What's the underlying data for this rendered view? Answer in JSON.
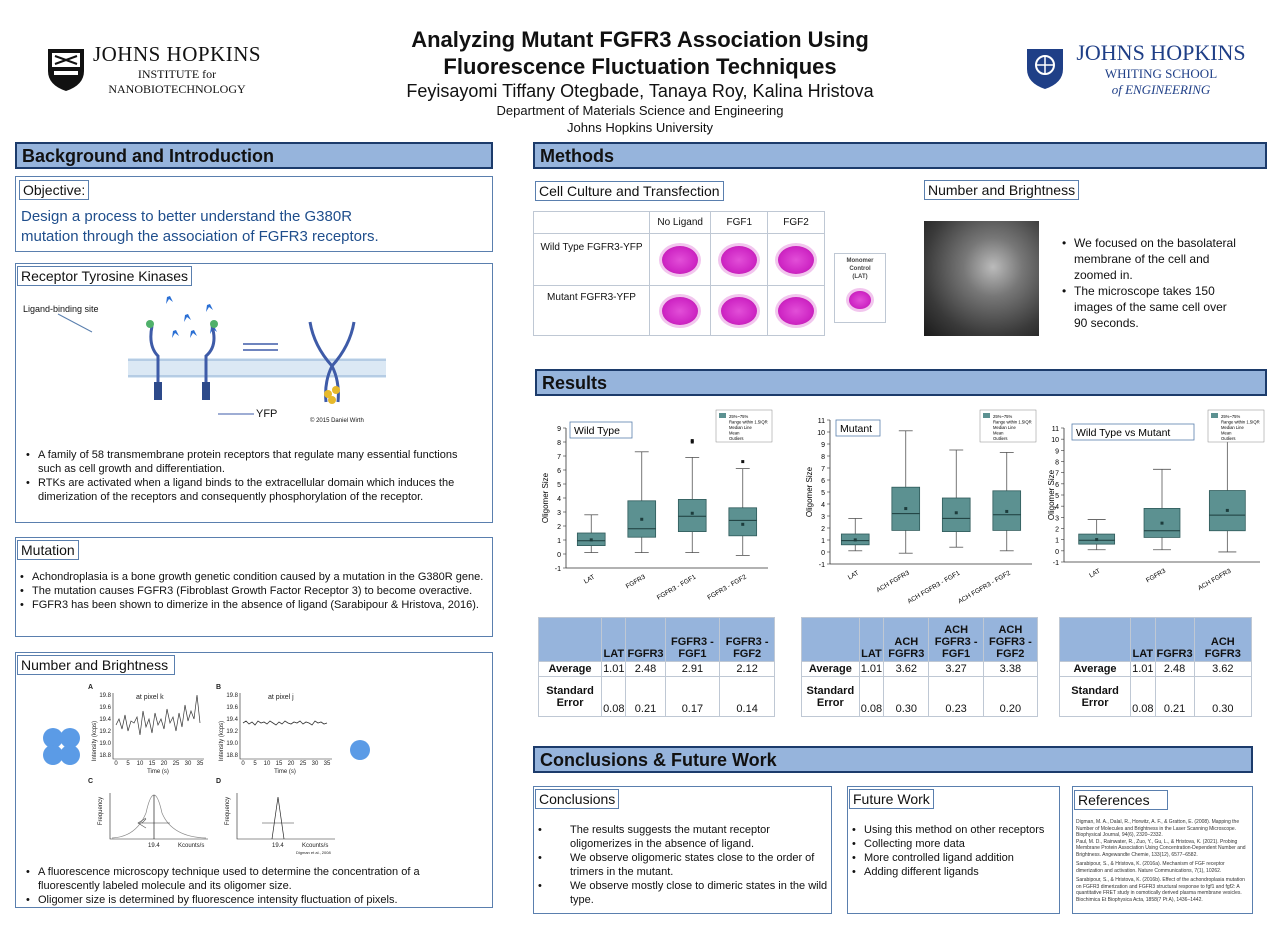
{
  "header": {
    "title_line1": "Analyzing Mutant FGFR3 Association Using",
    "title_line2": "Fluorescence Fluctuation Techniques",
    "authors": "Feyisayomi Tiffany Otegbade, Tanaya Roy, Kalina Hristova",
    "department": "Department of Materials Science and Engineering",
    "university": "Johns Hopkins University"
  },
  "logo_left": {
    "name": "JOHNS HOPKINS",
    "line2": "INSTITUTE for",
    "line3": "NANOBIOTECHNOLOGY",
    "icon": "shield-icon"
  },
  "logo_right": {
    "name": "JOHNS HOPKINS",
    "line2": "WHITING SCHOOL",
    "line3": "of ENGINEERING",
    "icon": "shield-icon"
  },
  "background": {
    "heading": "Background and Introduction",
    "objective_label": "Objective:",
    "objective_text": "Design a process to better understand the G380R mutation through the association of FGFR3 receptors.",
    "rtk_label": "Receptor Tyrosine Kinases",
    "fig_ligand": "Ligand-binding site",
    "fig_yfp": "YFP",
    "fig_credit": "© 2015 Daniel Wirth",
    "rtk_bullets": [
      "A family of 58 transmembrane protein receptors that regulate many essential functions such as cell growth and differentiation.",
      "RTKs are activated when a ligand binds to the extracellular domain which induces the dimerization of the receptors and consequently phosphorylation of the receptor."
    ]
  },
  "mutation": {
    "label": "Mutation",
    "bullets": [
      "Achondroplasia is a bone growth genetic condition caused by a mutation in the G380R gene.",
      "The mutation causes FGFR3 (Fibroblast Growth Factor Receptor 3) to become overactive.",
      "FGFR3 has been shown to dimerize in the absence of ligand (Sarabipour & Hristova, 2016)."
    ]
  },
  "nb_left": {
    "label": "Number and Brightness",
    "panel_a": "A",
    "panel_b": "B",
    "panel_c": "C",
    "panel_d": "D",
    "a_title": "at pixel k",
    "b_title": "at pixel j",
    "ylab": "Intensity (kcps)",
    "xlab": "Time (s)",
    "freq": "Frequency",
    "kc": "Kcounts/s",
    "val": "19.4",
    "cite": "Digman et al., 2008",
    "y_ticks": [
      "19.8",
      "19.6",
      "19.4",
      "19.2",
      "19.0",
      "18.8"
    ],
    "x_ticks": [
      "0",
      "5",
      "10",
      "15",
      "20",
      "25",
      "30",
      "35"
    ],
    "bullets": [
      "A fluorescence microscopy technique used to determine the concentration of a fluorescently labeled molecule and its oligomer size.",
      "Oligomer size is determined by fluorescence intensity fluctuation of pixels."
    ]
  },
  "methods": {
    "heading": "Methods",
    "cell_label": "Cell Culture and Transfection",
    "cols": [
      "No Ligand",
      "FGF1",
      "FGF2"
    ],
    "rows": [
      "Wild Type FGFR3-YFP",
      "Mutant FGFR3-YFP"
    ],
    "monomer": "Monomer Control (LAT)",
    "nb_label": "Number and Brightness",
    "nb_bullets": [
      "We focused on the basolateral membrane of the cell and zoomed in.",
      "The microscope takes 150 images of the same cell over 90 seconds."
    ]
  },
  "results": {
    "heading": "Results",
    "legend": [
      "25%~75%",
      "Range within 1.5IQR",
      "Median Line",
      "Mean",
      "Outliers"
    ]
  },
  "chart_data": [
    {
      "type": "box",
      "title": "Wild Type",
      "ylabel": "Oligomer Size",
      "ylim": [
        -1,
        9
      ],
      "y_ticks": [
        "-1",
        "0",
        "1",
        "2",
        "3",
        "4",
        "5",
        "6",
        "7",
        "8",
        "9"
      ],
      "categories": [
        "LAT",
        "FGFR3",
        "FGFR3 - FGF1",
        "FGFR3 - FGF2"
      ],
      "boxes": [
        {
          "min": 0.1,
          "q1": 0.6,
          "median": 0.95,
          "q3": 1.5,
          "max": 2.8,
          "mean": 1.01
        },
        {
          "min": 0.1,
          "q1": 1.2,
          "median": 1.8,
          "q3": 3.8,
          "max": 7.3,
          "mean": 2.48
        },
        {
          "min": 0.1,
          "q1": 1.6,
          "median": 2.7,
          "q3": 3.9,
          "max": 6.9,
          "mean": 2.91,
          "outliers": [
            8.0,
            8.1
          ]
        },
        {
          "min": -0.1,
          "q1": 1.3,
          "median": 2.4,
          "q3": 3.3,
          "max": 6.1,
          "mean": 2.12,
          "outliers": [
            6.6
          ]
        }
      ]
    },
    {
      "type": "box",
      "title": "Mutant",
      "ylabel": "Oligomer Size",
      "ylim": [
        -1,
        11
      ],
      "y_ticks": [
        "-1",
        "0",
        "1",
        "2",
        "3",
        "4",
        "5",
        "6",
        "7",
        "8",
        "9",
        "10",
        "11"
      ],
      "categories": [
        "LAT",
        "ACH FGFR3",
        "ACH FGFR3 - FGF1",
        "ACH FGFR3 - FGF2"
      ],
      "boxes": [
        {
          "min": 0.1,
          "q1": 0.6,
          "median": 0.95,
          "q3": 1.5,
          "max": 2.8,
          "mean": 1.01
        },
        {
          "min": -0.1,
          "q1": 1.8,
          "median": 3.2,
          "q3": 5.4,
          "max": 10.1,
          "mean": 3.62
        },
        {
          "min": 0.4,
          "q1": 1.7,
          "median": 2.8,
          "q3": 4.5,
          "max": 8.5,
          "mean": 3.27
        },
        {
          "min": 0.1,
          "q1": 1.8,
          "median": 3.1,
          "q3": 5.1,
          "max": 8.3,
          "mean": 3.38
        }
      ]
    },
    {
      "type": "box",
      "title": "Wild Type vs Mutant",
      "ylabel": "Oligomer Size",
      "ylim": [
        -1,
        11
      ],
      "y_ticks": [
        "-1",
        "0",
        "1",
        "2",
        "3",
        "4",
        "5",
        "6",
        "7",
        "8",
        "9",
        "10",
        "11"
      ],
      "categories": [
        "LAT",
        "FGFR3",
        "ACH FGFR3"
      ],
      "boxes": [
        {
          "min": 0.1,
          "q1": 0.6,
          "median": 0.95,
          "q3": 1.5,
          "max": 2.8,
          "mean": 1.01
        },
        {
          "min": 0.1,
          "q1": 1.2,
          "median": 1.8,
          "q3": 3.8,
          "max": 7.3,
          "mean": 2.48
        },
        {
          "min": -0.1,
          "q1": 1.8,
          "median": 3.2,
          "q3": 5.4,
          "max": 10.1,
          "mean": 3.62
        }
      ]
    }
  ],
  "tables": [
    {
      "cols": [
        "LAT",
        "FGFR3",
        "FGFR3 - FGF1",
        "FGFR3 - FGF2"
      ],
      "avg": [
        "1.01",
        "2.48",
        "2.91",
        "2.12"
      ],
      "err": [
        "0.08",
        "0.21",
        "0.17",
        "0.14"
      ]
    },
    {
      "cols": [
        "LAT",
        "ACH FGFR3",
        "ACH FGFR3 - FGF1",
        "ACH FGFR3 - FGF2"
      ],
      "avg": [
        "1.01",
        "3.62",
        "3.27",
        "3.38"
      ],
      "err": [
        "0.08",
        "0.30",
        "0.23",
        "0.20"
      ]
    },
    {
      "cols": [
        "LAT",
        "FGFR3",
        "ACH FGFR3"
      ],
      "avg": [
        "1.01",
        "2.48",
        "3.62"
      ],
      "err": [
        "0.08",
        "0.21",
        "0.30"
      ]
    }
  ],
  "table_labels": {
    "average": "Average",
    "error": "Standard Error"
  },
  "conclusions": {
    "heading": "Conclusions & Future Work",
    "c_label": "Conclusions",
    "c_bullets": [
      "The results suggests the mutant receptor oligomerizes in the absence of ligand.",
      "We observe oligomeric states close to the order of trimers in the mutant.",
      "We observe mostly close to dimeric states in the wild type."
    ],
    "f_label": "Future Work",
    "f_bullets": [
      "Using this method on other receptors",
      "Collecting more data",
      "More controlled ligand addition",
      "Adding different ligands"
    ],
    "r_label": "References",
    "refs": [
      "Digman, M. A., Dalal, R., Horwitz, A. F., & Gratton, E. (2008). Mapping the Number of Molecules and Brightness in the Laser Scanning Microscope. Biophysical Journal, 94(6), 2320–2332.",
      "Paul, M. D., Rainwater, R., Zuo, Y., Gu, L., & Hristova, K. (2021). Probing Membrane Protein Association Using Concentration-Dependent Number and Brightness. Angewandte Chemie, 133(12), 6577–6582.",
      "Sarabipour, S., & Hristova, K. (2016a). Mechanism of FGF receptor dimerization and activation. Nature Communications, 7(1), 10262.",
      "Sarabipour, S., & Hristova, K. (2016b). Effect of the achondroplasia mutation on FGFR3 dimerization and FGFR3 structural response to fgf1 and fgf2: A quantitative FRET study in osmotically derived plasma membrane vesicles. Biochimica Et Biophysica Acta, 1858(7 Pt A), 1436–1442."
    ]
  }
}
